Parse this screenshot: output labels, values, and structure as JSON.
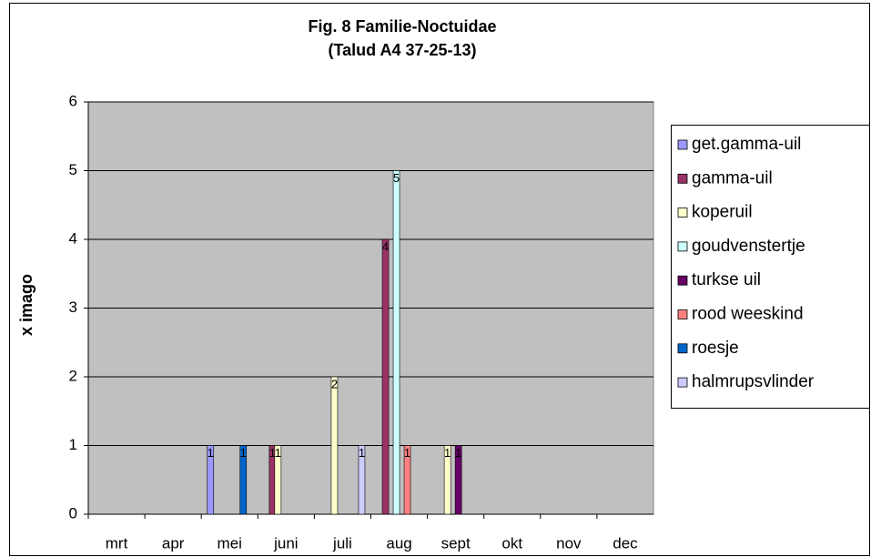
{
  "chart_data": {
    "type": "bar",
    "title": "Fig. 8 Familie-Noctuidae",
    "subtitle": "(Talud A4 37-25-13)",
    "y_label": "x imago",
    "categories": [
      "mrt",
      "apr",
      "mei",
      "juni",
      "juli",
      "aug",
      "sept",
      "okt",
      "nov",
      "dec"
    ],
    "series": [
      {
        "name": "get.gamma-uil",
        "color": "#9999ff",
        "values": [
          null,
          null,
          1,
          null,
          null,
          null,
          null,
          null,
          null,
          null
        ]
      },
      {
        "name": "gamma-uil",
        "color": "#993366",
        "values": [
          null,
          null,
          null,
          1,
          null,
          4,
          null,
          null,
          null,
          null
        ]
      },
      {
        "name": "koperuil",
        "color": "#ffffcc",
        "values": [
          null,
          null,
          null,
          1,
          2,
          null,
          1,
          null,
          null,
          null
        ]
      },
      {
        "name": "goudvenstertje",
        "color": "#ccffff",
        "values": [
          null,
          null,
          null,
          null,
          null,
          5,
          null,
          null,
          null,
          null
        ]
      },
      {
        "name": "turkse uil",
        "color": "#660066",
        "values": [
          null,
          null,
          null,
          null,
          null,
          null,
          1,
          null,
          null,
          null
        ]
      },
      {
        "name": "rood weeskind",
        "color": "#ff8080",
        "values": [
          null,
          null,
          null,
          null,
          null,
          1,
          null,
          null,
          null,
          null
        ]
      },
      {
        "name": "roesje",
        "color": "#0066cc",
        "values": [
          null,
          null,
          1,
          null,
          null,
          null,
          null,
          null,
          null,
          null
        ]
      },
      {
        "name": "halmrupsvlinder",
        "color": "#ccccff",
        "values": [
          null,
          null,
          null,
          null,
          1,
          null,
          null,
          null,
          null,
          null
        ]
      }
    ],
    "ylim": [
      0,
      6
    ],
    "yticks": [
      0,
      1,
      2,
      3,
      4,
      5,
      6
    ],
    "grid": true,
    "legend": "right"
  }
}
